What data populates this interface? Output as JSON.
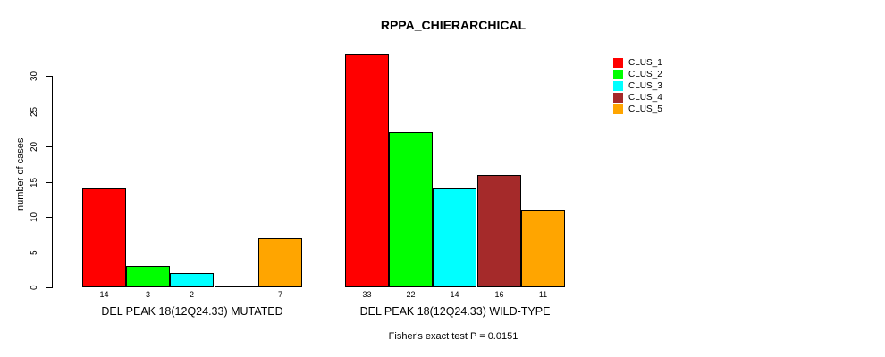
{
  "chart_data": {
    "type": "bar",
    "title": "RPPA_CHIERARCHICAL",
    "ylabel": "number of cases",
    "xlabel": "",
    "ylim": [
      0,
      33
    ],
    "yticks": [
      0,
      5,
      10,
      15,
      20,
      25,
      30
    ],
    "grid": false,
    "legend_position": "right",
    "categories": [
      "DEL PEAK 18(12Q24.33) MUTATED",
      "DEL PEAK 18(12Q24.33) WILD-TYPE"
    ],
    "series": [
      {
        "name": "CLUS_1",
        "color": "#ff0000",
        "values": [
          14,
          33
        ],
        "labels": [
          "14",
          "33"
        ]
      },
      {
        "name": "CLUS_2",
        "color": "#00ff00",
        "values": [
          3,
          22
        ],
        "labels": [
          "3",
          "22"
        ]
      },
      {
        "name": "CLUS_3",
        "color": "#00ffff",
        "values": [
          2,
          14
        ],
        "labels": [
          "2",
          "14"
        ]
      },
      {
        "name": "CLUS_4",
        "color": "#a52a2a",
        "values": [
          0,
          16
        ],
        "labels": [
          "",
          "16"
        ]
      },
      {
        "name": "CLUS_5",
        "color": "#ffa500",
        "values": [
          7,
          11
        ],
        "labels": [
          "7",
          "11"
        ]
      }
    ],
    "annotation": "Fisher's exact test P = 0.0151"
  },
  "colors": {
    "background": "#ffffff",
    "axis": "#000000",
    "text": "#000000"
  }
}
